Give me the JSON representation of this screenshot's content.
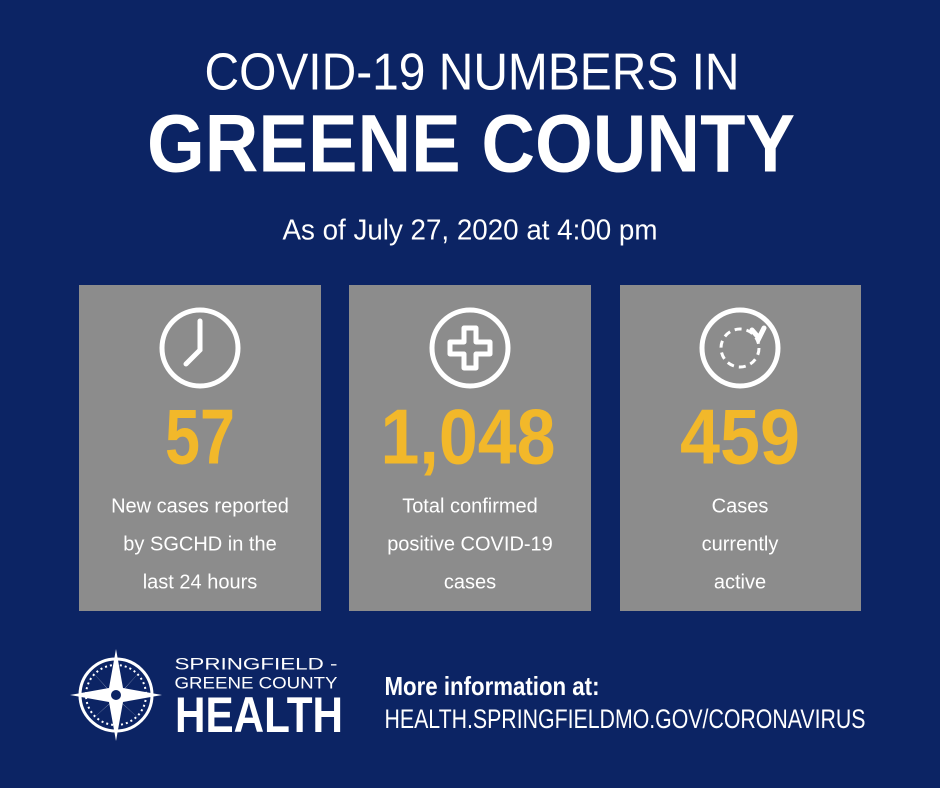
{
  "header": {
    "title_line1": "COVID-19 NUMBERS IN",
    "title_line2": "GREENE COUNTY",
    "subtitle": "As of July 27, 2020 at 4:00 pm"
  },
  "cards": [
    {
      "value": "57",
      "label": [
        "New cases reported",
        "by SGCHD in the",
        "last 24 hours"
      ]
    },
    {
      "value": "1,048",
      "label": [
        "Total confirmed",
        "positive COVID-19",
        "cases"
      ]
    },
    {
      "value": "459",
      "label": [
        "Cases",
        "currently",
        "active"
      ]
    }
  ],
  "footer": {
    "logo": {
      "line1": "SPRINGFIELD -",
      "line2": "GREENE COUNTY",
      "line3": "HEALTH"
    },
    "info_label": "More information at:",
    "url": "HEALTH.SPRINGFIELDMO.GOV/CORONAVIRUS"
  }
}
